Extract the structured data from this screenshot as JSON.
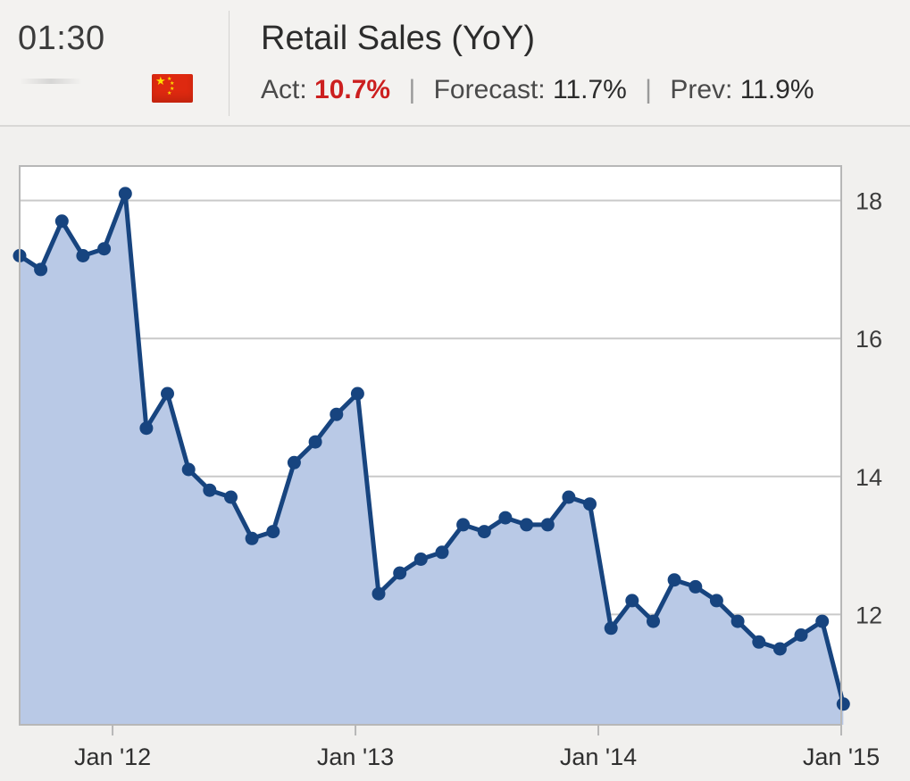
{
  "header": {
    "time": "01:30",
    "title": "Retail Sales (YoY)",
    "act_label": "Act:",
    "act_value": "10.7%",
    "forecast_label": "Forecast:",
    "forecast_value": "11.7%",
    "prev_label": "Prev:",
    "prev_value": "11.9%",
    "separator": "|",
    "flag_icon": "china-flag-icon",
    "colors": {
      "actual": "#cc1f1f",
      "flag_red": "#de2910",
      "flag_star": "#ffde00"
    }
  },
  "chart_data": {
    "type": "area",
    "title": "",
    "xlabel": "",
    "ylabel": "",
    "x_ticks": [
      "Jan '12",
      "Jan '13",
      "Jan '14",
      "Jan '15"
    ],
    "y_ticks": [
      "12",
      "14",
      "16",
      "18"
    ],
    "y_axis_side": "right",
    "ylim": [
      10.4,
      18.5
    ],
    "grid": true,
    "legend": "none",
    "series": [
      {
        "values": [
          17.2,
          17.0,
          17.7,
          17.2,
          17.3,
          18.1,
          14.7,
          15.2,
          14.1,
          13.8,
          13.7,
          13.1,
          13.2,
          14.2,
          14.5,
          14.9,
          15.2,
          12.3,
          12.6,
          12.8,
          12.9,
          13.3,
          13.2,
          13.4,
          13.3,
          13.3,
          13.7,
          13.6,
          11.8,
          12.2,
          11.9,
          12.5,
          12.4,
          12.2,
          11.9,
          11.6,
          11.5,
          11.7,
          11.9,
          10.7
        ]
      }
    ],
    "colors": {
      "line": "#17447f",
      "fill": "#b9c9e6",
      "grid": "#c9c9c9",
      "frame": "#b7b7b7",
      "plot_bg": "#ffffff"
    }
  }
}
